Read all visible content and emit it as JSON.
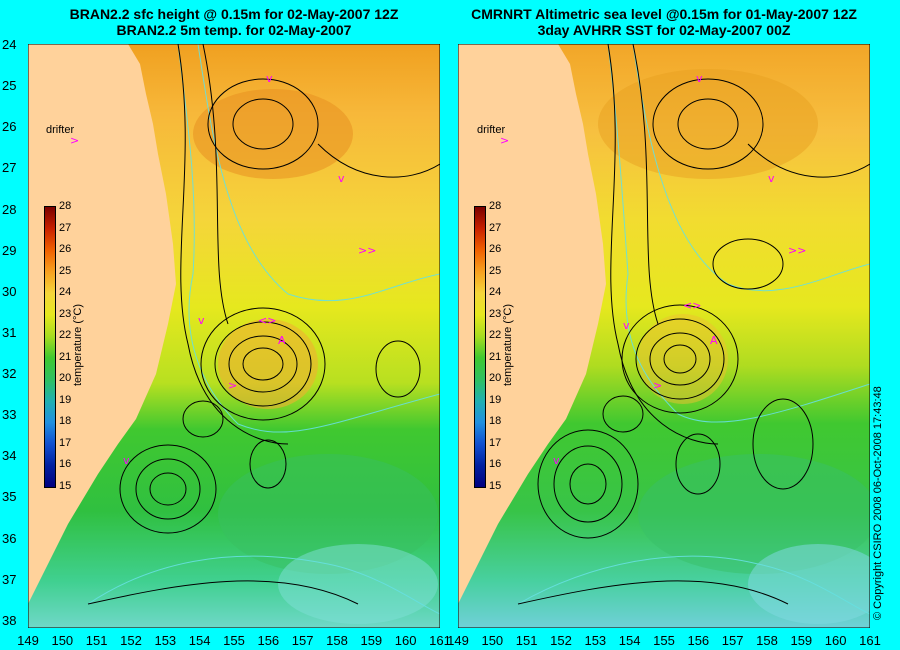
{
  "left_panel": {
    "title_line1": "BRAN2.2 sfc height @ 0.15m for 02-May-2007 12Z",
    "title_line2": "BRAN2.2 5m temp. for 02-May-2007",
    "drifter_label": "drifter"
  },
  "right_panel": {
    "title_line1": "CMRNRT Altimetric sea level  @0.15m  for 01-May-2007 12Z",
    "title_line2": "3day AVHRR SST for 02-May-2007 00Z",
    "drifter_label": "drifter"
  },
  "colorbar": {
    "label": "temperature (°C)",
    "ticks": [
      "28",
      "27",
      "26",
      "25",
      "24",
      "23",
      "22",
      "21",
      "20",
      "19",
      "18",
      "17",
      "16",
      "15"
    ]
  },
  "lat_ticks": [
    "24",
    "25",
    "26",
    "27",
    "28",
    "29",
    "30",
    "31",
    "32",
    "33",
    "34",
    "35",
    "36",
    "37",
    "38"
  ],
  "lon_ticks": [
    "149",
    "150",
    "151",
    "152",
    "153",
    "154",
    "155",
    "156",
    "157",
    "158",
    "159",
    "160",
    "161"
  ],
  "copyright": "© Copyright CSIRO 2008   06-Oct-2008 17:43:48",
  "colors": {
    "frame": "#00ffff",
    "land": "#ffd29b",
    "drifter": "#ff00ff",
    "contour": "#000000",
    "isotherm": "#66e0e0"
  }
}
